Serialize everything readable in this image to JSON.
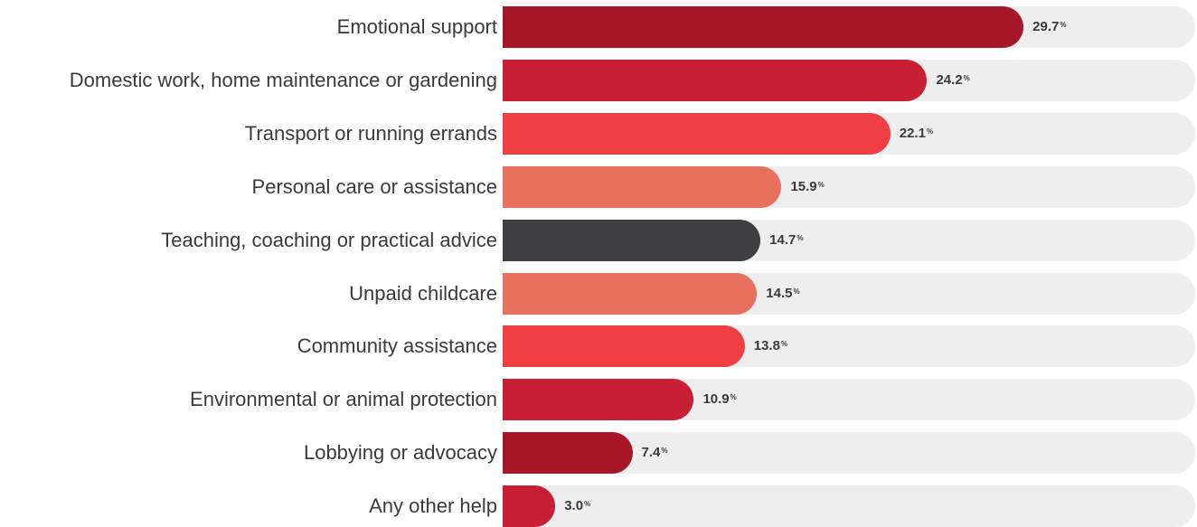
{
  "chart_data": {
    "type": "bar",
    "orientation": "horizontal",
    "title": "",
    "xlabel": "",
    "ylabel": "",
    "xlim": [
      0,
      45
    ],
    "grid": false,
    "value_suffix": "%",
    "categories": [
      "Emotional support",
      "Domestic work, home maintenance or gardening",
      "Transport or running errands",
      "Personal care or assistance",
      "Teaching, coaching or practical advice",
      "Unpaid childcare",
      "Community assistance",
      "Environmental or animal protection",
      "Lobbying or advocacy",
      "Any other help"
    ],
    "values": [
      29.7,
      24.2,
      22.1,
      15.9,
      14.7,
      14.5,
      13.8,
      10.9,
      7.4,
      3.0
    ],
    "value_labels": [
      "29.7",
      "24.2",
      "22.1",
      "15.9",
      "14.7",
      "14.5",
      "13.8",
      "10.9",
      "7.4",
      "3.0"
    ],
    "colors": [
      "#a51729",
      "#c81f35",
      "#ef3f43",
      "#e8705f",
      "#3f3e40",
      "#e8705f",
      "#ef3f43",
      "#c81f35",
      "#a51729",
      "#c81f35"
    ],
    "track_color": "#efeeee"
  }
}
